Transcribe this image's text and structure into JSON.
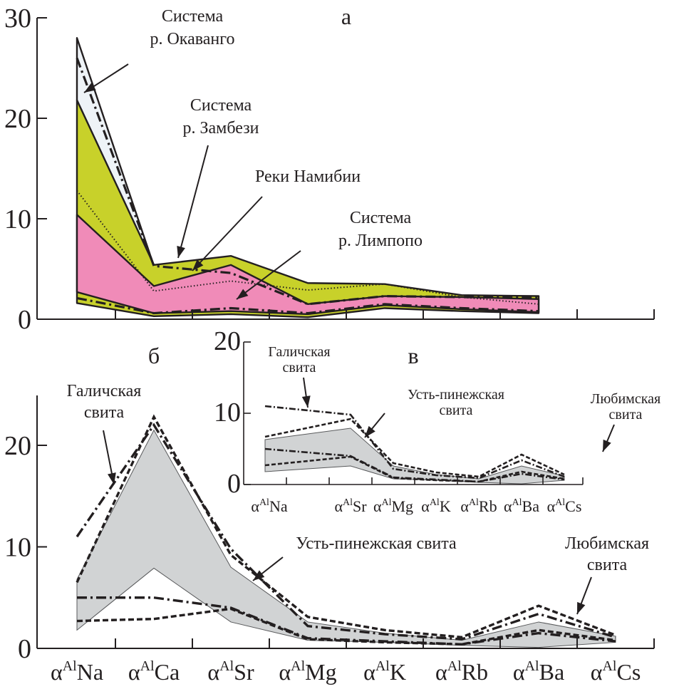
{
  "chart_data": [
    {
      "id": "a",
      "type": "area",
      "panel_label": "а",
      "ylim": [
        0,
        30
      ],
      "yticks": [
        0,
        10,
        20,
        30
      ],
      "x_count": 7,
      "colors": {
        "okavango": "#eef3f7",
        "zambezi": "#c8d12a",
        "limpopo": "#f08bb8"
      },
      "bands": [
        {
          "name": "Система р. Окаванго",
          "fill": "okavango",
          "upper": [
            28.0,
            5.3,
            5.5,
            3.2,
            2.4,
            2.3,
            2.3
          ],
          "lower": [
            21.8,
            5.3,
            5.4,
            3.2,
            2.4,
            2.3,
            2.3
          ]
        },
        {
          "name": "Система р. Замбези",
          "fill": "zambezi",
          "upper": [
            21.8,
            5.4,
            6.3,
            3.6,
            3.5,
            2.4,
            2.3
          ],
          "lower": [
            1.6,
            0.3,
            0.5,
            0.2,
            1.1,
            0.8,
            0.6
          ]
        },
        {
          "name": "Система р. Лимпопо",
          "fill": "limpopo",
          "upper": [
            10.4,
            3.3,
            5.4,
            1.5,
            2.3,
            2.2,
            2.0
          ],
          "lower": [
            2.7,
            0.6,
            0.8,
            0.5,
            1.4,
            1.0,
            0.7
          ]
        }
      ],
      "lines": [
        {
          "name": "Система р. Окаванго (max)",
          "style": "dashdot",
          "values": [
            26.0,
            5.3,
            4.6,
            1.5,
            2.3,
            2.2,
            2.2
          ]
        },
        {
          "name": "Реки Намибии",
          "style": "dotted",
          "values": [
            12.8,
            2.8,
            3.8,
            2.9,
            3.5,
            2.2,
            1.5
          ]
        },
        {
          "name": "dashdot low",
          "style": "dashdot",
          "values": [
            2.1,
            0.6,
            1.1,
            0.6,
            1.5,
            1.1,
            0.8
          ]
        }
      ],
      "annotations": [
        {
          "text": [
            "Система",
            "р. Окаванго"
          ]
        },
        {
          "text": [
            "Система",
            "р. Замбези"
          ]
        },
        {
          "text": [
            "Реки Намибии"
          ]
        },
        {
          "text": [
            "Система",
            "р. Лимпопо"
          ]
        }
      ]
    },
    {
      "id": "b",
      "type": "area",
      "panel_label": "б",
      "ylim": [
        0,
        25
      ],
      "yticks": [
        0,
        10,
        20
      ],
      "categories": [
        "Na",
        "Ca",
        "Sr",
        "Mg",
        "K",
        "Rb",
        "Ba",
        "Cs"
      ],
      "category_prefix": "α",
      "category_sup": "Al",
      "band": {
        "fill": "#d1d3d4",
        "upper": [
          6.8,
          21.5,
          8.0,
          2.6,
          1.5,
          0.8,
          2.6,
          1.2
        ],
        "lower": [
          1.8,
          7.9,
          2.6,
          0.8,
          0.6,
          0.3,
          0.1,
          0.6
        ]
      },
      "lines": [
        {
          "name": "Галичская свита",
          "style": "dashdot",
          "values": [
            11.0,
            22.0,
            9.8,
            2.2,
            1.4,
            0.9,
            3.4,
            1.1
          ]
        },
        {
          "name": "Усть-пинежская свита",
          "style": "dashed",
          "values": [
            6.5,
            22.8,
            9.2,
            3.1,
            1.8,
            1.1,
            4.2,
            1.3
          ]
        },
        {
          "name": "dashdot low",
          "style": "dashdot",
          "values": [
            5.0,
            5.0,
            4.0,
            1.0,
            0.7,
            0.4,
            1.5,
            0.7
          ]
        },
        {
          "name": "dashed low",
          "style": "dashed",
          "values": [
            2.7,
            2.9,
            3.9,
            0.9,
            0.6,
            0.4,
            1.8,
            0.8
          ]
        }
      ],
      "annotations": [
        {
          "text": [
            "Галичская",
            "свита"
          ]
        },
        {
          "text": [
            "Усть-пинежская свита"
          ]
        },
        {
          "text": [
            "Любимская",
            "свита"
          ]
        }
      ]
    },
    {
      "id": "v",
      "type": "area",
      "panel_label": "в",
      "ylim": [
        0,
        20
      ],
      "yticks": [
        0,
        10,
        20
      ],
      "categories": [
        "Na",
        "Sr",
        "Mg",
        "K",
        "Rb",
        "Ba",
        "Cs"
      ],
      "category_prefix": "α",
      "category_sup": "Al",
      "band": {
        "fill": "#d1d3d4",
        "upper": [
          6.3,
          7.9,
          2.6,
          1.4,
          0.8,
          2.6,
          1.2
        ],
        "lower": [
          1.8,
          2.6,
          0.8,
          0.6,
          0.3,
          0.1,
          0.6
        ]
      },
      "lines": [
        {
          "name": "Галичская свита",
          "style": "dashdot",
          "values": [
            11.0,
            9.8,
            2.2,
            1.3,
            0.9,
            3.4,
            1.1
          ]
        },
        {
          "name": "Усть-пинежская свита",
          "style": "dashed",
          "values": [
            6.7,
            9.2,
            3.0,
            1.7,
            1.1,
            4.2,
            1.4
          ]
        },
        {
          "name": "dashdot low",
          "style": "dashdot",
          "values": [
            5.0,
            4.0,
            1.0,
            0.7,
            0.4,
            1.5,
            0.7
          ]
        },
        {
          "name": "dashed low",
          "style": "dashed",
          "values": [
            2.7,
            3.9,
            0.9,
            0.6,
            0.4,
            1.8,
            0.8
          ]
        }
      ],
      "annotations": [
        {
          "text": [
            "Галичская",
            "свита"
          ]
        },
        {
          "text": [
            "Усть-пинежская",
            "свита"
          ]
        },
        {
          "text": [
            "Любимская",
            "свита"
          ]
        }
      ]
    }
  ]
}
